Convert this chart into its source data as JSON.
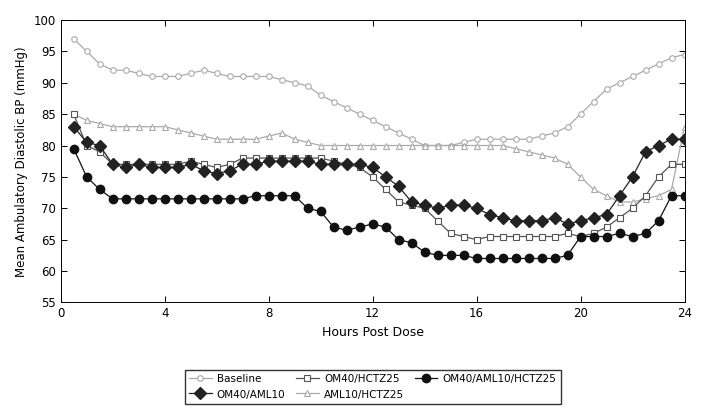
{
  "xlabel": "Hours Post Dose",
  "ylabel": "Mean Ambulatory Diastolic BP (mmHg)",
  "ylim": [
    55,
    100
  ],
  "xlim": [
    0,
    24
  ],
  "xticks": [
    0,
    4,
    8,
    12,
    16,
    20,
    24
  ],
  "yticks": [
    55,
    60,
    65,
    70,
    75,
    80,
    85,
    90,
    95,
    100
  ],
  "baseline": {
    "label": "Baseline",
    "color": "#aaaaaa",
    "x": [
      0.5,
      1,
      1.5,
      2,
      2.5,
      3,
      3.5,
      4,
      4.5,
      5,
      5.5,
      6,
      6.5,
      7,
      7.5,
      8,
      8.5,
      9,
      9.5,
      10,
      10.5,
      11,
      11.5,
      12,
      12.5,
      13,
      13.5,
      14,
      14.5,
      15,
      15.5,
      16,
      16.5,
      17,
      17.5,
      18,
      18.5,
      19,
      19.5,
      20,
      20.5,
      21,
      21.5,
      22,
      22.5,
      23,
      23.5,
      24
    ],
    "y": [
      97,
      95,
      93,
      92,
      92,
      91.5,
      91,
      91,
      91,
      91.5,
      92,
      91.5,
      91,
      91,
      91,
      91,
      90.5,
      90,
      89.5,
      88,
      87,
      86,
      85,
      84,
      83,
      82,
      81,
      80,
      80,
      80,
      80.5,
      81,
      81,
      81,
      81,
      81,
      81.5,
      82,
      83,
      85,
      87,
      89,
      90,
      91,
      92,
      93,
      94,
      94.5
    ]
  },
  "aml10_hctz25": {
    "label": "AML10/HCTZ25",
    "color": "#aaaaaa",
    "x": [
      0.5,
      1,
      1.5,
      2,
      2.5,
      3,
      3.5,
      4,
      4.5,
      5,
      5.5,
      6,
      6.5,
      7,
      7.5,
      8,
      8.5,
      9,
      9.5,
      10,
      10.5,
      11,
      11.5,
      12,
      12.5,
      13,
      13.5,
      14,
      14.5,
      15,
      15.5,
      16,
      16.5,
      17,
      17.5,
      18,
      18.5,
      19,
      19.5,
      20,
      20.5,
      21,
      21.5,
      22,
      22.5,
      23,
      23.5,
      24
    ],
    "y": [
      85,
      84,
      83.5,
      83,
      83,
      83,
      83,
      83,
      82.5,
      82,
      81.5,
      81,
      81,
      81,
      81,
      81.5,
      82,
      81,
      80.5,
      80,
      80,
      80,
      80,
      80,
      80,
      80,
      80,
      80,
      80,
      80,
      80,
      80,
      80,
      80,
      79.5,
      79,
      78.5,
      78,
      77,
      75,
      73,
      72,
      71,
      71,
      71.5,
      72,
      73,
      83
    ]
  },
  "om40_aml10": {
    "label": "OM40/AML10",
    "color": "#222222",
    "x": [
      0.5,
      1,
      1.5,
      2,
      2.5,
      3,
      3.5,
      4,
      4.5,
      5,
      5.5,
      6,
      6.5,
      7,
      7.5,
      8,
      8.5,
      9,
      9.5,
      10,
      10.5,
      11,
      11.5,
      12,
      12.5,
      13,
      13.5,
      14,
      14.5,
      15,
      15.5,
      16,
      16.5,
      17,
      17.5,
      18,
      18.5,
      19,
      19.5,
      20,
      20.5,
      21,
      21.5,
      22,
      22.5,
      23,
      23.5,
      24
    ],
    "y": [
      83,
      80.5,
      80,
      77,
      76.5,
      77,
      76.5,
      76.5,
      76.5,
      77,
      76,
      75.5,
      76,
      77,
      77,
      77.5,
      77.5,
      77.5,
      77.5,
      77,
      77,
      77,
      77,
      76.5,
      75,
      73.5,
      71,
      70.5,
      70,
      70.5,
      70.5,
      70,
      69,
      68.5,
      68,
      68,
      68,
      68.5,
      67.5,
      68,
      68.5,
      69,
      72,
      75,
      79,
      80,
      81,
      81
    ]
  },
  "om40_hctz25": {
    "label": "OM40/HCTZ25",
    "color": "#555555",
    "x": [
      0.5,
      1,
      1.5,
      2,
      2.5,
      3,
      3.5,
      4,
      4.5,
      5,
      5.5,
      6,
      6.5,
      7,
      7.5,
      8,
      8.5,
      9,
      9.5,
      10,
      10.5,
      11,
      11.5,
      12,
      12.5,
      13,
      13.5,
      14,
      14.5,
      15,
      15.5,
      16,
      16.5,
      17,
      17.5,
      18,
      18.5,
      19,
      19.5,
      20,
      20.5,
      21,
      21.5,
      22,
      22.5,
      23,
      23.5,
      24
    ],
    "y": [
      85,
      80,
      79,
      77,
      77,
      77,
      77,
      77,
      77,
      77.5,
      77,
      76.5,
      77,
      78,
      78,
      78,
      78,
      78,
      78,
      78,
      77.5,
      77,
      76.5,
      75,
      73,
      71,
      70.5,
      70,
      68,
      66,
      65.5,
      65,
      65.5,
      65.5,
      65.5,
      65.5,
      65.5,
      65.5,
      66,
      65.5,
      66,
      67,
      68.5,
      70,
      72,
      75,
      77,
      77
    ]
  },
  "om40_aml10_hctz25": {
    "label": "OM40/AML10/HCTZ25",
    "color": "#111111",
    "x": [
      0.5,
      1,
      1.5,
      2,
      2.5,
      3,
      3.5,
      4,
      4.5,
      5,
      5.5,
      6,
      6.5,
      7,
      7.5,
      8,
      8.5,
      9,
      9.5,
      10,
      10.5,
      11,
      11.5,
      12,
      12.5,
      13,
      13.5,
      14,
      14.5,
      15,
      15.5,
      16,
      16.5,
      17,
      17.5,
      18,
      18.5,
      19,
      19.5,
      20,
      20.5,
      21,
      21.5,
      22,
      22.5,
      23,
      23.5,
      24
    ],
    "y": [
      79.5,
      75,
      73,
      71.5,
      71.5,
      71.5,
      71.5,
      71.5,
      71.5,
      71.5,
      71.5,
      71.5,
      71.5,
      71.5,
      72,
      72,
      72,
      72,
      70,
      69.5,
      67,
      66.5,
      67,
      67.5,
      67,
      65,
      64.5,
      63,
      62.5,
      62.5,
      62.5,
      62,
      62,
      62,
      62,
      62,
      62,
      62,
      62.5,
      65.5,
      65.5,
      65.5,
      66,
      65.5,
      66,
      68,
      72,
      72
    ]
  },
  "legend_color_base": "#aaaaaa",
  "legend_color_dark": "#222222",
  "legend_color_darker": "#111111",
  "legend_color_med": "#555555"
}
